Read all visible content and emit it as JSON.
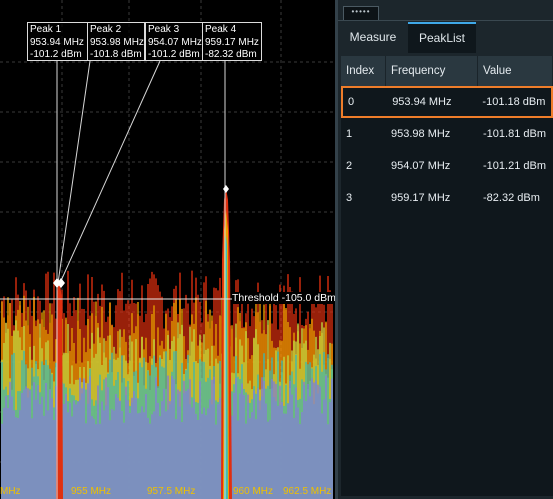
{
  "spectrum": {
    "peaks": [
      {
        "title": "Peak 1",
        "freq": "953.94 MHz",
        "level": "-101.2 dBm"
      },
      {
        "title": "Peak 2",
        "freq": "953.98 MHz",
        "level": "-101.8 dBm"
      },
      {
        "title": "Peak 3",
        "freq": "954.07 MHz",
        "level": "-101.2 dBm"
      },
      {
        "title": "Peak 4",
        "freq": "959.17 MHz",
        "level": "-82.32 dBm"
      }
    ],
    "threshold_label": "Threshold -105.0 dBm",
    "x_ticks": [
      "MHz",
      "955 MHz",
      "957.5 MHz",
      "960 MHz",
      "962.5 MHz"
    ],
    "colors": {
      "trace_hot": "#e03010",
      "trace_warm": "#f0a000",
      "trace_cool": "#40c0b0",
      "tick": "#f0c000"
    }
  },
  "panel": {
    "handle_label": "•••••",
    "tabs": [
      {
        "label": "Measure"
      },
      {
        "label": "PeakList"
      }
    ],
    "table": {
      "headers": [
        "Index",
        "Frequency",
        "Value"
      ],
      "rows": [
        {
          "index": "0",
          "frequency": "953.94 MHz",
          "value": "-101.18 dBm"
        },
        {
          "index": "1",
          "frequency": "953.98 MHz",
          "value": "-101.81 dBm"
        },
        {
          "index": "2",
          "frequency": "954.07 MHz",
          "value": "-101.21 dBm"
        },
        {
          "index": "3",
          "frequency": "959.17 MHz",
          "value": "-82.32 dBm"
        }
      ]
    },
    "colors": {
      "accent": "#3fa8e8",
      "selection": "#ef7d2a"
    }
  }
}
